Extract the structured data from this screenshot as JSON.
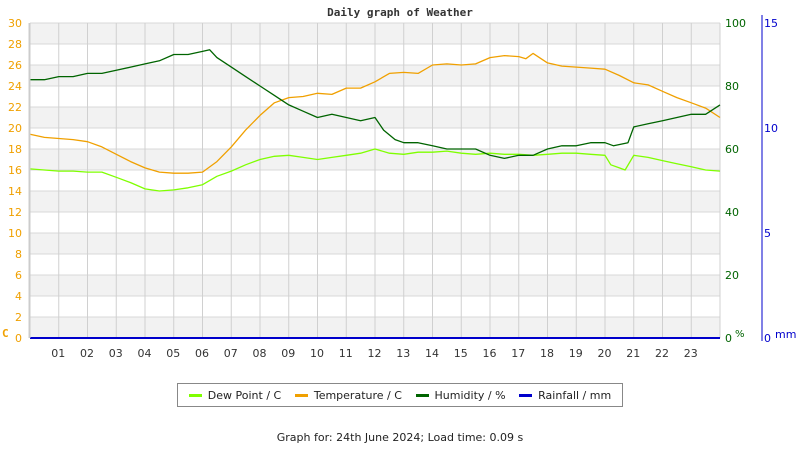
{
  "chart_data": {
    "type": "line",
    "title": "Daily graph of Weather",
    "x_ticks": [
      "01",
      "02",
      "03",
      "04",
      "05",
      "06",
      "07",
      "08",
      "09",
      "10",
      "11",
      "12",
      "13",
      "14",
      "15",
      "16",
      "17",
      "18",
      "19",
      "20",
      "21",
      "22",
      "23"
    ],
    "xlabel": "",
    "axes": {
      "left": {
        "label": "C",
        "ticks": [
          0,
          2,
          4,
          6,
          8,
          10,
          12,
          14,
          16,
          18,
          20,
          22,
          24,
          26,
          28,
          30
        ],
        "range": [
          0,
          30
        ],
        "color": "#f0a000"
      },
      "right1": {
        "label": "%",
        "ticks": [
          0,
          20,
          40,
          60,
          80,
          100
        ],
        "range": [
          0,
          100
        ],
        "color": "#006400"
      },
      "right2": {
        "label": "mm",
        "ticks": [
          0,
          5,
          10,
          15
        ],
        "range": [
          0,
          15
        ],
        "color": "#0000cc"
      }
    },
    "grid": true,
    "legend_position": "bottom",
    "series": [
      {
        "name": "Dew Point / C",
        "color": "#7fff00",
        "axis": "left",
        "x": [
          0,
          0.5,
          1,
          1.5,
          2,
          2.5,
          3,
          3.5,
          4,
          4.5,
          5,
          5.5,
          6,
          6.5,
          7,
          7.5,
          8,
          8.5,
          9,
          9.5,
          10,
          10.5,
          11,
          11.5,
          12,
          12.5,
          13,
          13.5,
          14,
          14.5,
          15,
          15.5,
          16,
          16.5,
          17,
          17.5,
          18,
          18.5,
          19,
          19.5,
          20,
          20.2,
          20.5,
          20.7,
          21,
          21.5,
          22,
          22.5,
          23,
          23.5,
          24
        ],
        "values": [
          16.1,
          16.0,
          15.9,
          15.9,
          15.8,
          15.8,
          15.3,
          14.8,
          14.2,
          14.0,
          14.1,
          14.3,
          14.6,
          15.4,
          15.9,
          16.5,
          17.0,
          17.3,
          17.4,
          17.2,
          17.0,
          17.2,
          17.4,
          17.6,
          18.0,
          17.6,
          17.5,
          17.7,
          17.7,
          17.8,
          17.6,
          17.5,
          17.6,
          17.5,
          17.5,
          17.4,
          17.5,
          17.6,
          17.6,
          17.5,
          17.4,
          16.5,
          16.2,
          16.0,
          17.4,
          17.2,
          16.9,
          16.6,
          16.3,
          16.0,
          15.9
        ]
      },
      {
        "name": "Temperature / C",
        "color": "#f0a000",
        "axis": "left",
        "x": [
          0,
          0.5,
          1,
          1.5,
          2,
          2.5,
          3,
          3.5,
          4,
          4.5,
          5,
          5.5,
          6,
          6.5,
          7,
          7.5,
          8,
          8.5,
          9,
          9.5,
          10,
          10.5,
          11,
          11.5,
          12,
          12.5,
          13,
          13.5,
          14,
          14.5,
          15,
          15.5,
          16,
          16.5,
          17,
          17.25,
          17.5,
          18,
          18.5,
          19,
          19.5,
          20,
          20.5,
          21,
          21.5,
          22,
          22.5,
          23,
          23.5,
          24
        ],
        "values": [
          19.4,
          19.1,
          19.0,
          18.9,
          18.7,
          18.2,
          17.5,
          16.8,
          16.2,
          15.8,
          15.7,
          15.7,
          15.8,
          16.8,
          18.2,
          19.8,
          21.2,
          22.4,
          22.9,
          23.0,
          23.3,
          23.2,
          23.8,
          23.8,
          24.4,
          25.2,
          25.3,
          25.2,
          26.0,
          26.1,
          26.0,
          26.1,
          26.7,
          26.9,
          26.8,
          26.6,
          27.1,
          26.2,
          25.9,
          25.8,
          25.7,
          25.6,
          25.0,
          24.3,
          24.1,
          23.5,
          22.9,
          22.4,
          21.9,
          21.0
        ]
      },
      {
        "name": "Humidity / %",
        "color": "#006400",
        "axis": "right1",
        "x": [
          0,
          0.5,
          1,
          1.5,
          2,
          2.5,
          3,
          3.5,
          4,
          4.5,
          5,
          5.5,
          6,
          6.25,
          6.5,
          7,
          7.5,
          8,
          8.5,
          9,
          9.5,
          10,
          10.5,
          11,
          11.5,
          12,
          12.3,
          12.7,
          13,
          13.5,
          14,
          14.5,
          15,
          15.5,
          16,
          16.5,
          17,
          17.5,
          18,
          18.5,
          19,
          19.5,
          20,
          20.3,
          20.8,
          21,
          21.5,
          22,
          22.5,
          23,
          23.5,
          24
        ],
        "values": [
          82,
          82,
          83,
          83,
          84,
          84,
          85,
          86,
          87,
          88,
          90,
          90,
          91,
          91.5,
          89,
          86,
          83,
          80,
          77,
          74,
          72,
          70,
          71,
          70,
          69,
          70,
          66,
          63,
          62,
          62,
          61,
          60,
          60,
          60,
          58,
          57,
          58,
          58,
          60,
          61,
          61,
          62,
          62,
          61,
          62,
          67,
          68,
          69,
          70,
          71,
          71,
          74
        ]
      },
      {
        "name": "Rainfall / mm",
        "color": "#0000cc",
        "axis": "right2",
        "x": [
          0,
          24
        ],
        "values": [
          0,
          0
        ]
      }
    ]
  },
  "legend": {
    "items": [
      {
        "label": "Dew Point / C",
        "color": "#7fff00"
      },
      {
        "label": "Temperature / C",
        "color": "#f0a000"
      },
      {
        "label": "Humidity / %",
        "color": "#006400"
      },
      {
        "label": "Rainfall / mm",
        "color": "#0000cc"
      }
    ]
  },
  "footer": {
    "text": "Graph for: 24th June 2024; Load time: 0.09 s"
  }
}
